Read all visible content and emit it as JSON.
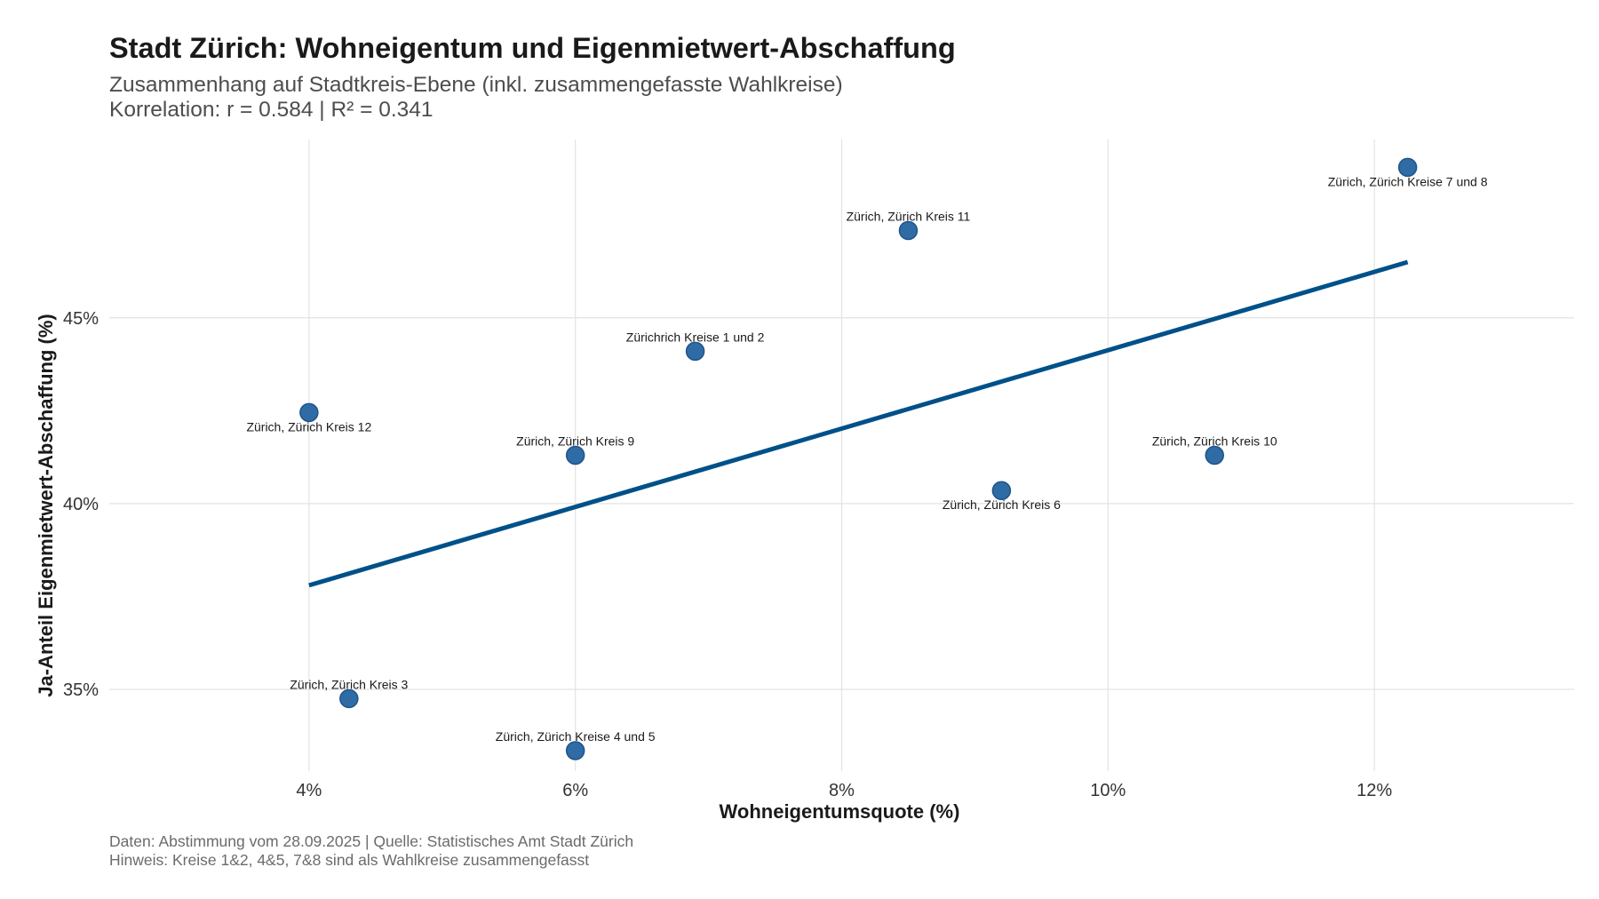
{
  "colors": {
    "point_fill": "#2f6ca6",
    "point_stroke": "#1f5488",
    "trend_line": "#00508a",
    "grid": "#e3e3e3",
    "text": "#1a1a1a",
    "subtitle_text": "#4d4d4d",
    "caption_text": "#6b6b6b"
  },
  "chart_data": {
    "type": "scatter",
    "title": "Stadt Zürich: Wohneigentum und Eigenmietwert-Abschaffung",
    "subtitle_lines": [
      "Zusammenhang auf Stadtkreis-Ebene (inkl. zusammengefasste Wahlkreise)",
      "Korrelation: r = 0.584 | R² = 0.341"
    ],
    "xlabel": "Wohneigentumsquote (%)",
    "ylabel": "Ja-Anteil Eigenmietwert-Abschaffung (%)",
    "xlim": [
      2.5,
      13.5
    ],
    "ylim": [
      32.8,
      49.8
    ],
    "x_ticks": [
      {
        "value": 4,
        "label": "4%"
      },
      {
        "value": 6,
        "label": "6%"
      },
      {
        "value": 8,
        "label": "8%"
      },
      {
        "value": 10,
        "label": "10%"
      },
      {
        "value": 12,
        "label": "12%"
      }
    ],
    "y_ticks": [
      {
        "value": 35,
        "label": "35%"
      },
      {
        "value": 40,
        "label": "40%"
      },
      {
        "value": 45,
        "label": "45%"
      }
    ],
    "grid": true,
    "legend": "none",
    "points": [
      {
        "label": "Zürich, Zürich Kreise 7 und 8",
        "x": 12.25,
        "y": 49.05,
        "label_pos": "below"
      },
      {
        "label": "Zürich, Zürich Kreis 11",
        "x": 8.5,
        "y": 47.35,
        "label_pos": "above"
      },
      {
        "label": "Zürichrich Kreise 1 und 2",
        "x": 6.9,
        "y": 44.1,
        "label_pos": "above"
      },
      {
        "label": "Zürich, Zürich Kreis 12",
        "x": 4.0,
        "y": 42.45,
        "label_pos": "below"
      },
      {
        "label": "Zürich, Zürich Kreis 9",
        "x": 6.0,
        "y": 41.3,
        "label_pos": "above"
      },
      {
        "label": "Zürich, Zürich Kreis 10",
        "x": 10.8,
        "y": 41.3,
        "label_pos": "above"
      },
      {
        "label": "Zürich, Zürich Kreis 6",
        "x": 9.2,
        "y": 40.35,
        "label_pos": "below"
      },
      {
        "label": "Zürich, Zürich Kreis 3",
        "x": 4.3,
        "y": 34.75,
        "label_pos": "above"
      },
      {
        "label": "Zürich, Zürich Kreise 4 und 5",
        "x": 6.0,
        "y": 33.35,
        "label_pos": "above"
      }
    ],
    "trend_line": {
      "x": [
        4.0,
        12.25
      ],
      "y": [
        37.8,
        46.5
      ]
    },
    "caption_lines": [
      "Daten: Abstimmung vom 28.09.2025 | Quelle: Statistisches Amt Stadt Zürich",
      "Hinweis: Kreise 1&2, 4&5, 7&8 sind als Wahlkreise zusammengefasst"
    ]
  }
}
